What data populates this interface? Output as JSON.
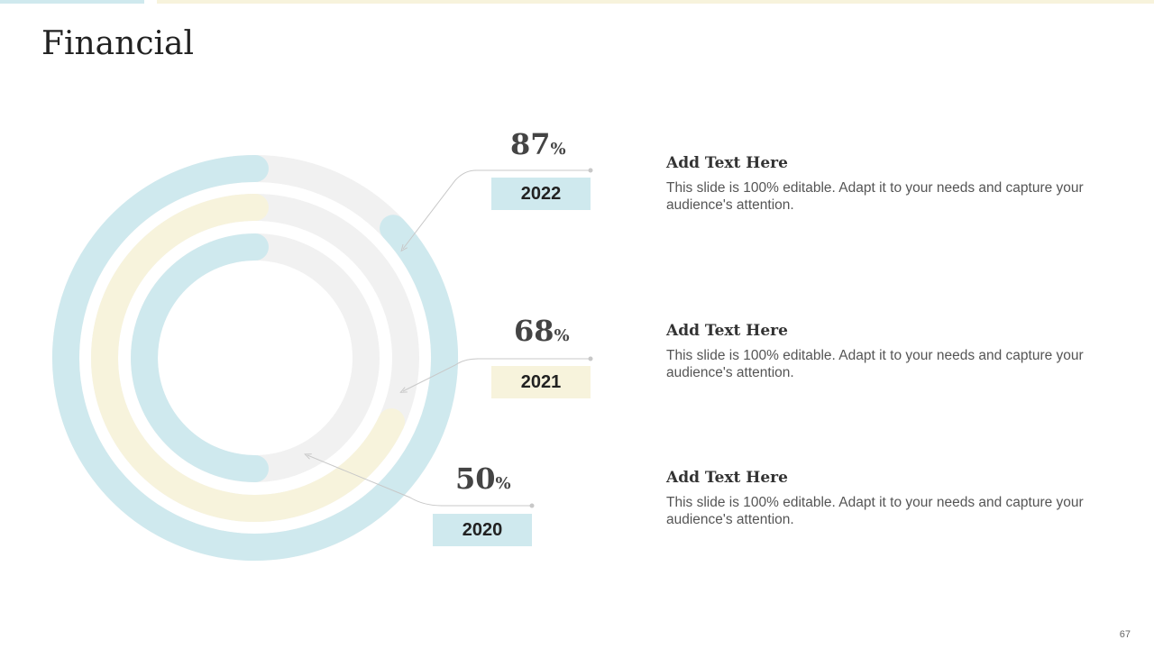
{
  "title": "Financial",
  "page_number": "67",
  "colors": {
    "blue": "#cfe9ee",
    "yellow": "#f7f3dc",
    "track": "#f1f1f1",
    "connector": "#c8c8c8"
  },
  "chart_data": {
    "type": "radial-bar",
    "series": [
      {
        "label": "2022",
        "value": 87,
        "value_label": "87",
        "unit": "%",
        "color": "#cfe9ee"
      },
      {
        "label": "2021",
        "value": 68,
        "value_label": "68",
        "unit": "%",
        "color": "#f7f3dc"
      },
      {
        "label": "2020",
        "value": 50,
        "value_label": "50",
        "unit": "%",
        "color": "#cfe9ee"
      }
    ]
  },
  "items": [
    {
      "heading": "Add Text Here",
      "body": "This slide is 100% editable. Adapt it to your needs and capture your audience's attention."
    },
    {
      "heading": "Add Text Here",
      "body": "This slide is 100% editable. Adapt it to your needs and capture your audience's attention."
    },
    {
      "heading": "Add Text Here",
      "body": "This slide is 100% editable. Adapt it to your needs and capture your audience's attention."
    }
  ]
}
